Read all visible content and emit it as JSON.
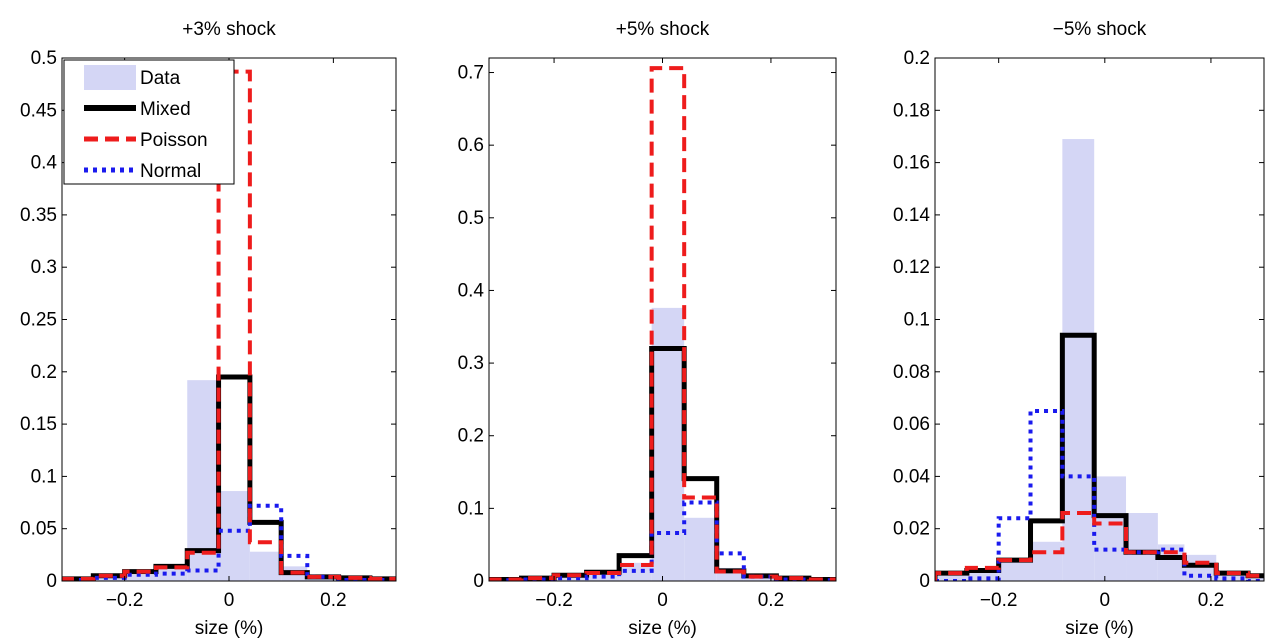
{
  "chart_data": [
    {
      "type": "bar",
      "title": "+3% shock",
      "xlabel": "size (%)",
      "ylabel": "",
      "xlim": [
        -0.32,
        0.32
      ],
      "ylim": [
        0,
        0.5
      ],
      "xticks": [
        -0.2,
        0,
        0.2
      ],
      "xtick_labels": [
        "−0.2",
        "0",
        "0.2"
      ],
      "yticks": [
        0,
        0.05,
        0.1,
        0.15,
        0.2,
        0.25,
        0.3,
        0.35,
        0.4,
        0.45,
        0.5
      ],
      "ytick_labels": [
        "0",
        "0.05",
        "0.1",
        "0.15",
        "0.2",
        "0.25",
        "0.3",
        "0.35",
        "0.4",
        "0.45",
        "0.5"
      ],
      "bin_edges": [
        -0.32,
        -0.26,
        -0.2,
        -0.14,
        -0.08,
        -0.02,
        0.04,
        0.1,
        0.15,
        0.21,
        0.27,
        0.32
      ],
      "legend": {
        "position": "top-left",
        "entries": [
          "Data",
          "Mixed",
          "Poisson",
          "Normal"
        ]
      },
      "series": [
        {
          "name": "Data",
          "style": "bar",
          "values": [
            0.001,
            0.003,
            0.006,
            0.012,
            0.192,
            0.086,
            0.028,
            0.014,
            0.006,
            0.004,
            0.002
          ]
        },
        {
          "name": "Mixed",
          "style": "solid",
          "values": [
            0.002,
            0.005,
            0.009,
            0.014,
            0.029,
            0.195,
            0.056,
            0.008,
            0.004,
            0.003,
            0.002
          ]
        },
        {
          "name": "Poisson",
          "style": "dashed",
          "values": [
            0.002,
            0.005,
            0.009,
            0.013,
            0.027,
            0.487,
            0.037,
            0.008,
            0.004,
            0.003,
            0.002
          ]
        },
        {
          "name": "Normal",
          "style": "dotted",
          "values": [
            0.001,
            0.003,
            0.006,
            0.007,
            0.01,
            0.048,
            0.072,
            0.024,
            0.004,
            0.001,
            0.001
          ]
        }
      ]
    },
    {
      "type": "bar",
      "title": "+5% shock",
      "xlabel": "size (%)",
      "ylabel": "",
      "xlim": [
        -0.32,
        0.32
      ],
      "ylim": [
        0,
        0.72
      ],
      "xticks": [
        -0.2,
        0,
        0.2
      ],
      "xtick_labels": [
        "−0.2",
        "0",
        "0.2"
      ],
      "yticks": [
        0,
        0.1,
        0.2,
        0.3,
        0.4,
        0.5,
        0.6,
        0.7
      ],
      "ytick_labels": [
        "0",
        "0.1",
        "0.2",
        "0.3",
        "0.4",
        "0.5",
        "0.6",
        "0.7"
      ],
      "bin_edges": [
        -0.32,
        -0.26,
        -0.2,
        -0.14,
        -0.08,
        -0.02,
        0.04,
        0.1,
        0.15,
        0.21,
        0.27,
        0.32
      ],
      "series": [
        {
          "name": "Data",
          "style": "bar",
          "values": [
            0.001,
            0.003,
            0.006,
            0.011,
            0.025,
            0.376,
            0.087,
            0.018,
            0.01,
            0.004,
            0.002
          ]
        },
        {
          "name": "Mixed",
          "style": "solid",
          "values": [
            0.002,
            0.004,
            0.008,
            0.012,
            0.035,
            0.32,
            0.141,
            0.014,
            0.007,
            0.004,
            0.002
          ]
        },
        {
          "name": "Poisson",
          "style": "dashed",
          "values": [
            0.002,
            0.004,
            0.008,
            0.011,
            0.022,
            0.706,
            0.115,
            0.013,
            0.006,
            0.004,
            0.002
          ]
        },
        {
          "name": "Normal",
          "style": "dotted",
          "values": [
            0.001,
            0.002,
            0.004,
            0.006,
            0.014,
            0.066,
            0.108,
            0.038,
            0.006,
            0.002,
            0.001
          ]
        }
      ]
    },
    {
      "type": "bar",
      "title": "−5% shock",
      "xlabel": "size (%)",
      "ylabel": "",
      "xlim": [
        -0.32,
        0.3
      ],
      "ylim": [
        0,
        0.2
      ],
      "xticks": [
        -0.2,
        0,
        0.2
      ],
      "xtick_labels": [
        "−0.2",
        "0",
        "0.2"
      ],
      "yticks": [
        0,
        0.02,
        0.04,
        0.06,
        0.08,
        0.1,
        0.12,
        0.14,
        0.16,
        0.18,
        0.2
      ],
      "ytick_labels": [
        "0",
        "0.02",
        "0.04",
        "0.06",
        "0.08",
        "0.1",
        "0.12",
        "0.14",
        "0.16",
        "0.18",
        "0.2"
      ],
      "bin_edges": [
        -0.32,
        -0.26,
        -0.2,
        -0.14,
        -0.08,
        -0.02,
        0.04,
        0.1,
        0.15,
        0.21,
        0.27,
        0.3
      ],
      "series": [
        {
          "name": "Data",
          "style": "bar",
          "values": [
            0.002,
            0.004,
            0.008,
            0.015,
            0.169,
            0.04,
            0.026,
            0.014,
            0.01,
            0.004,
            0.002
          ]
        },
        {
          "name": "Mixed",
          "style": "solid",
          "values": [
            0.003,
            0.004,
            0.008,
            0.023,
            0.094,
            0.025,
            0.011,
            0.009,
            0.006,
            0.003,
            0.002
          ]
        },
        {
          "name": "Poisson",
          "style": "dashed",
          "values": [
            0.003,
            0.005,
            0.008,
            0.011,
            0.026,
            0.022,
            0.011,
            0.011,
            0.007,
            0.003,
            0.002
          ]
        },
        {
          "name": "Normal",
          "style": "dotted",
          "values": [
            0.0,
            0.001,
            0.024,
            0.065,
            0.04,
            0.012,
            0.011,
            0.012,
            0.002,
            0.001,
            0.0
          ]
        }
      ]
    }
  ],
  "style": {
    "data_fill": "#d4d6f5",
    "mixed_color": "#000000",
    "poisson_color": "#ee1c1c",
    "normal_color": "#1a1aee"
  }
}
